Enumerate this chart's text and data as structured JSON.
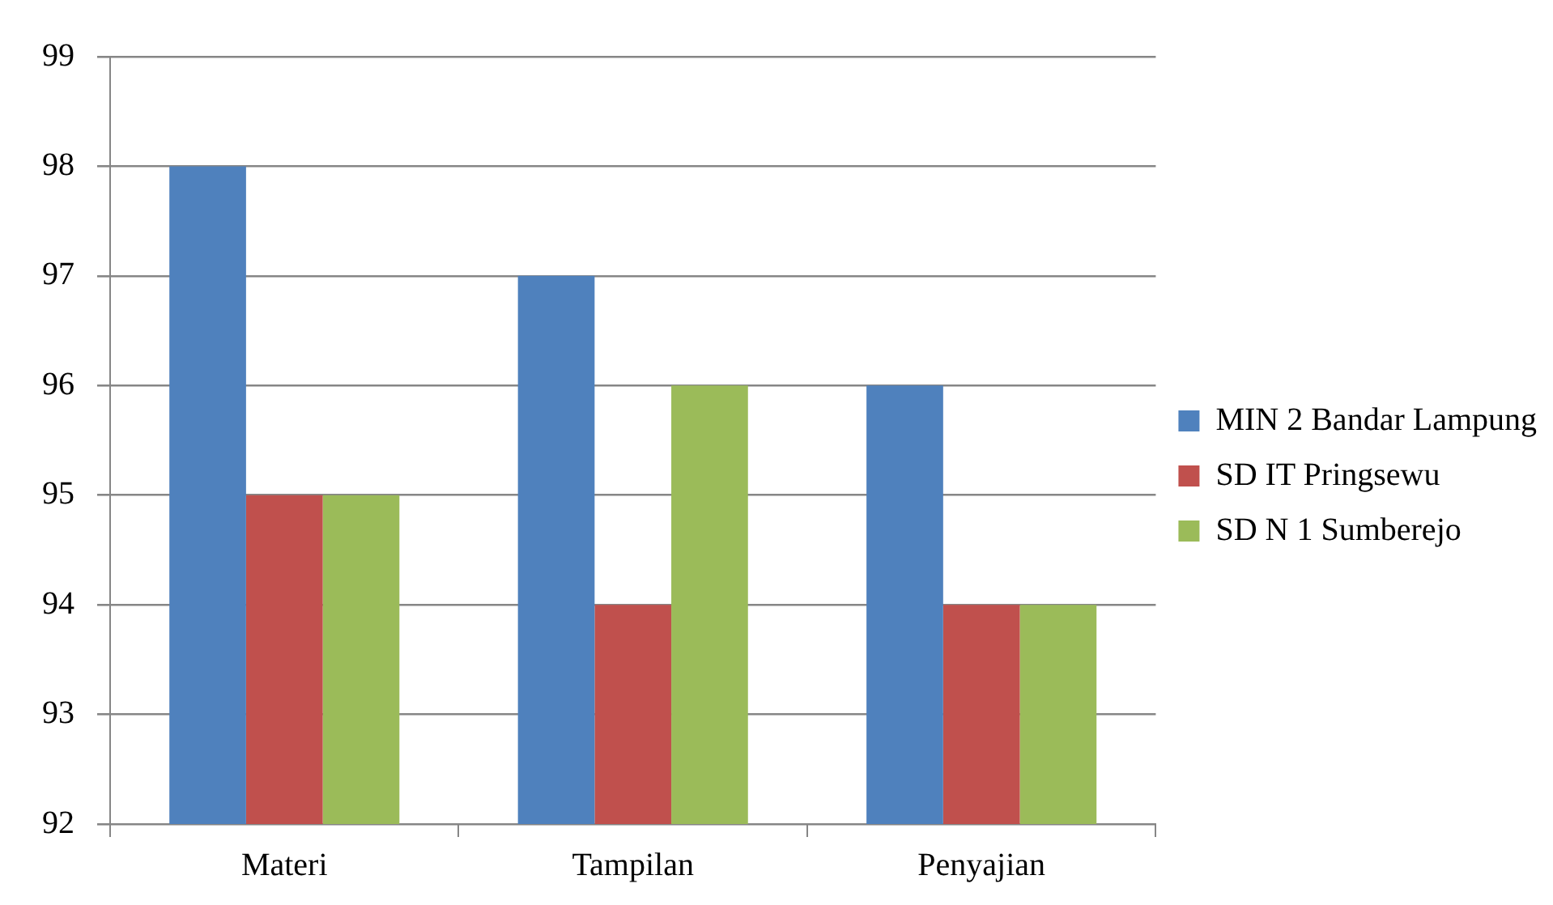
{
  "chart_data": {
    "type": "bar",
    "categories": [
      "Materi",
      "Tampilan",
      "Penyajian"
    ],
    "series": [
      {
        "name": "MIN 2 Bandar Lampung",
        "color": "#4f81bd",
        "values": [
          98,
          97,
          96
        ]
      },
      {
        "name": "SD IT Pringsewu",
        "color": "#c0504d",
        "values": [
          95,
          94,
          94
        ]
      },
      {
        "name": "SD N 1 Sumberejo",
        "color": "#9bbb59",
        "values": [
          95,
          96,
          94
        ]
      }
    ],
    "ylim": [
      92,
      99
    ],
    "yticks": [
      92,
      93,
      94,
      95,
      96,
      97,
      98,
      99
    ],
    "grid": "y",
    "legend": "right"
  }
}
